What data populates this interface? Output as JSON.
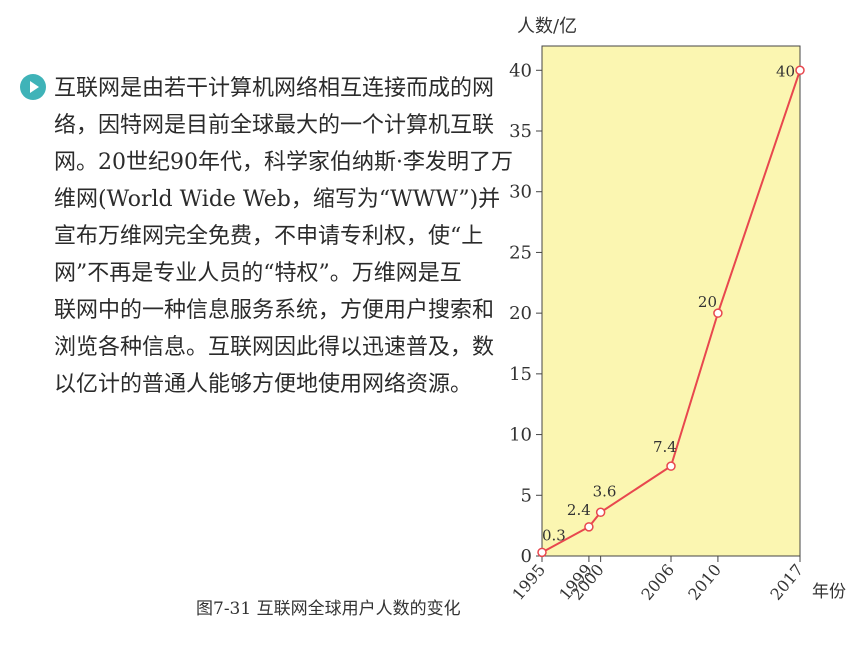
{
  "paragraph": {
    "lines": [
      "互联网是由若干计算机网络相互连接而成的网",
      "络，因特网是目前全球最大的一个计算机互联",
      "网。20世纪90年代，科学家伯纳斯·李发明了万",
      "维网(World Wide Web，缩写为“WWW”)并",
      "宣布万维网完全免费，不申请专利权，使“上",
      "网”不再是专业人员的“特权”。万维网是互",
      "联网中的一种信息服务系统，方便用户搜索和",
      "浏览各种信息。互联网因此得以迅速普及，数",
      "以亿计的普通人能够方便地使用网络资源。"
    ]
  },
  "caption": "图7-31 互联网全球用户人数的变化",
  "colors": {
    "bullet": "#3fb3b8",
    "plot_background": "#fbf6b1",
    "line": "#e8474e"
  },
  "chart_data": {
    "type": "line",
    "title": "",
    "ylabel": "人数/亿",
    "xlabel": "年份",
    "x": [
      1995,
      1999,
      2000,
      2006,
      2010,
      2017
    ],
    "x_tick_labels": [
      "1995",
      "1999",
      "2000",
      "2006",
      "2010",
      "2017"
    ],
    "series": [
      {
        "values": [
          0.3,
          2.4,
          3.6,
          7.4,
          20,
          40
        ],
        "labels": [
          "0.3",
          "2.4",
          "3.6",
          "7.4",
          "20",
          "40"
        ]
      }
    ],
    "ylim": [
      0,
      42
    ],
    "y_ticks": [
      0,
      5,
      10,
      15,
      20,
      25,
      30,
      35,
      40
    ],
    "grid": false,
    "legend": "none"
  }
}
